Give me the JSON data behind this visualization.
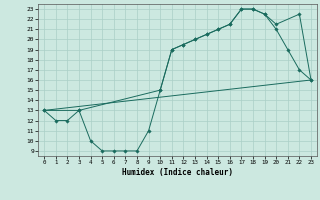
{
  "xlabel": "Humidex (Indice chaleur)",
  "xlim": [
    -0.5,
    23.5
  ],
  "ylim": [
    8.5,
    23.5
  ],
  "yticks": [
    9,
    10,
    11,
    12,
    13,
    14,
    15,
    16,
    17,
    18,
    19,
    20,
    21,
    22,
    23
  ],
  "xticks": [
    0,
    1,
    2,
    3,
    4,
    5,
    6,
    7,
    8,
    9,
    10,
    11,
    12,
    13,
    14,
    15,
    16,
    17,
    18,
    19,
    20,
    21,
    22,
    23
  ],
  "bg_color": "#cce8e0",
  "line_color": "#1a6b5e",
  "grid_color": "#aacfc7",
  "line1_x": [
    0,
    1,
    2,
    3,
    4,
    5,
    6,
    7,
    8,
    9,
    10,
    11,
    12,
    13,
    14,
    15,
    16,
    17,
    18,
    19,
    20,
    21,
    22,
    23
  ],
  "line1_y": [
    13,
    12,
    12,
    13,
    10,
    9,
    9,
    9,
    9,
    11,
    15,
    19,
    19.5,
    20,
    20.5,
    21,
    21.5,
    23,
    23,
    22.5,
    21,
    19,
    17,
    16
  ],
  "line2_x": [
    0,
    3,
    10,
    11,
    12,
    13,
    14,
    15,
    16,
    17,
    18,
    19,
    20,
    22,
    23
  ],
  "line2_y": [
    13,
    13,
    15,
    19,
    19.5,
    20,
    20.5,
    21,
    21.5,
    23,
    23,
    22.5,
    21.5,
    22.5,
    16
  ],
  "line3_x": [
    0,
    23
  ],
  "line3_y": [
    13,
    16
  ]
}
